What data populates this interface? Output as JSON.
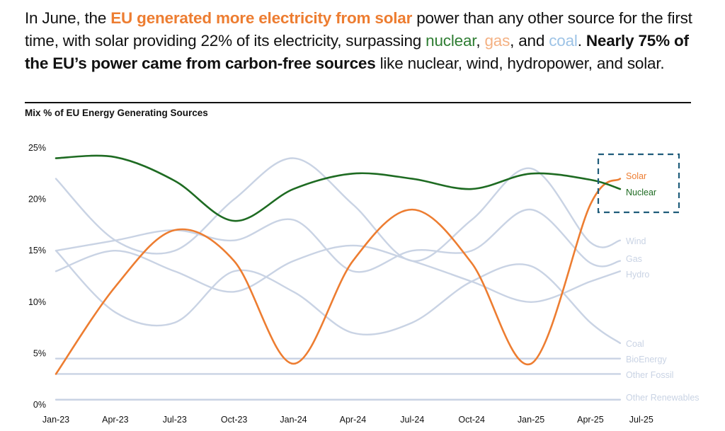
{
  "headline": {
    "p1": "In June, the ",
    "p2": "EU generated more electricity from solar",
    "p3": " power than any other source for the first time, with solar providing 22% of its electricity, surpassing ",
    "p4": "nuclear",
    "p5": ", ",
    "p6": "gas",
    "p7": ", and ",
    "p8": "coal",
    "p9": ". ",
    "p10": "Nearly 75% of the EU’s power came from carbon-free sources",
    "p11": " like nuclear, wind, hydropower, and solar."
  },
  "chart_data": {
    "type": "line",
    "title": "Mix % of EU Energy Generating Sources",
    "xlabel": "",
    "ylabel": "",
    "ylim": [
      0,
      25
    ],
    "y_ticks": [
      "0%",
      "5%",
      "10%",
      "15%",
      "20%",
      "25%"
    ],
    "x_ticks": [
      "Jan-23",
      "Apr-23",
      "Jul-23",
      "Oct-23",
      "Jan-24",
      "Apr-24",
      "Jul-24",
      "Oct-24",
      "Jan-25",
      "Apr-25",
      "Jul-25"
    ],
    "x_months": [
      0,
      3,
      6,
      9,
      12,
      15,
      18,
      21,
      24,
      27,
      28.5
    ],
    "grid": false,
    "legend": "right-end labels",
    "highlight_box": "Solar and Nuclear crossing, Jun-25",
    "colors": {
      "solar": "#ED7D31",
      "nuclear": "#1E6B22",
      "other": "#C9D3E4",
      "box": "#1F5C7A"
    },
    "series": [
      {
        "name": "Solar",
        "color": "#ED7D31",
        "values": [
          3,
          11.5,
          17,
          14,
          4,
          14,
          19,
          13.8,
          4,
          19.5,
          22
        ]
      },
      {
        "name": "Nuclear",
        "color": "#1E6B22",
        "values": [
          24,
          24.1,
          21.8,
          17.9,
          21,
          22.5,
          22,
          21,
          22.5,
          21.9,
          21
        ]
      },
      {
        "name": "Wind",
        "color": "#C9D3E4",
        "values": [
          22,
          16,
          15,
          20,
          24,
          19.5,
          14,
          18,
          23,
          15.8,
          16
        ]
      },
      {
        "name": "Gas",
        "color": "#C9D3E4",
        "values": [
          15,
          16,
          17,
          16,
          18,
          13,
          15,
          15,
          19,
          13.8,
          14
        ]
      },
      {
        "name": "Hydro",
        "color": "#C9D3E4",
        "values": [
          13,
          15,
          13,
          11,
          14,
          15.5,
          14,
          12,
          10,
          12,
          13
        ]
      },
      {
        "name": "Coal",
        "color": "#C9D3E4",
        "values": [
          15,
          9,
          8,
          13,
          11,
          7,
          8,
          12,
          13.5,
          8,
          6
        ]
      },
      {
        "name": "BioEnergy",
        "color": "#C9D3E4",
        "values": [
          4.5,
          4.5,
          4.5,
          4.5,
          4.5,
          4.5,
          4.5,
          4.5,
          4.5,
          4.5,
          4.5
        ]
      },
      {
        "name": "Other Fossil",
        "color": "#C9D3E4",
        "values": [
          3,
          3,
          3,
          3,
          3,
          3,
          3,
          3,
          3,
          3,
          3
        ]
      },
      {
        "name": "Other Renewables",
        "color": "#C9D3E4",
        "values": [
          0.5,
          0.5,
          0.5,
          0.5,
          0.5,
          0.5,
          0.5,
          0.5,
          0.5,
          0.5,
          0.5
        ]
      }
    ]
  }
}
